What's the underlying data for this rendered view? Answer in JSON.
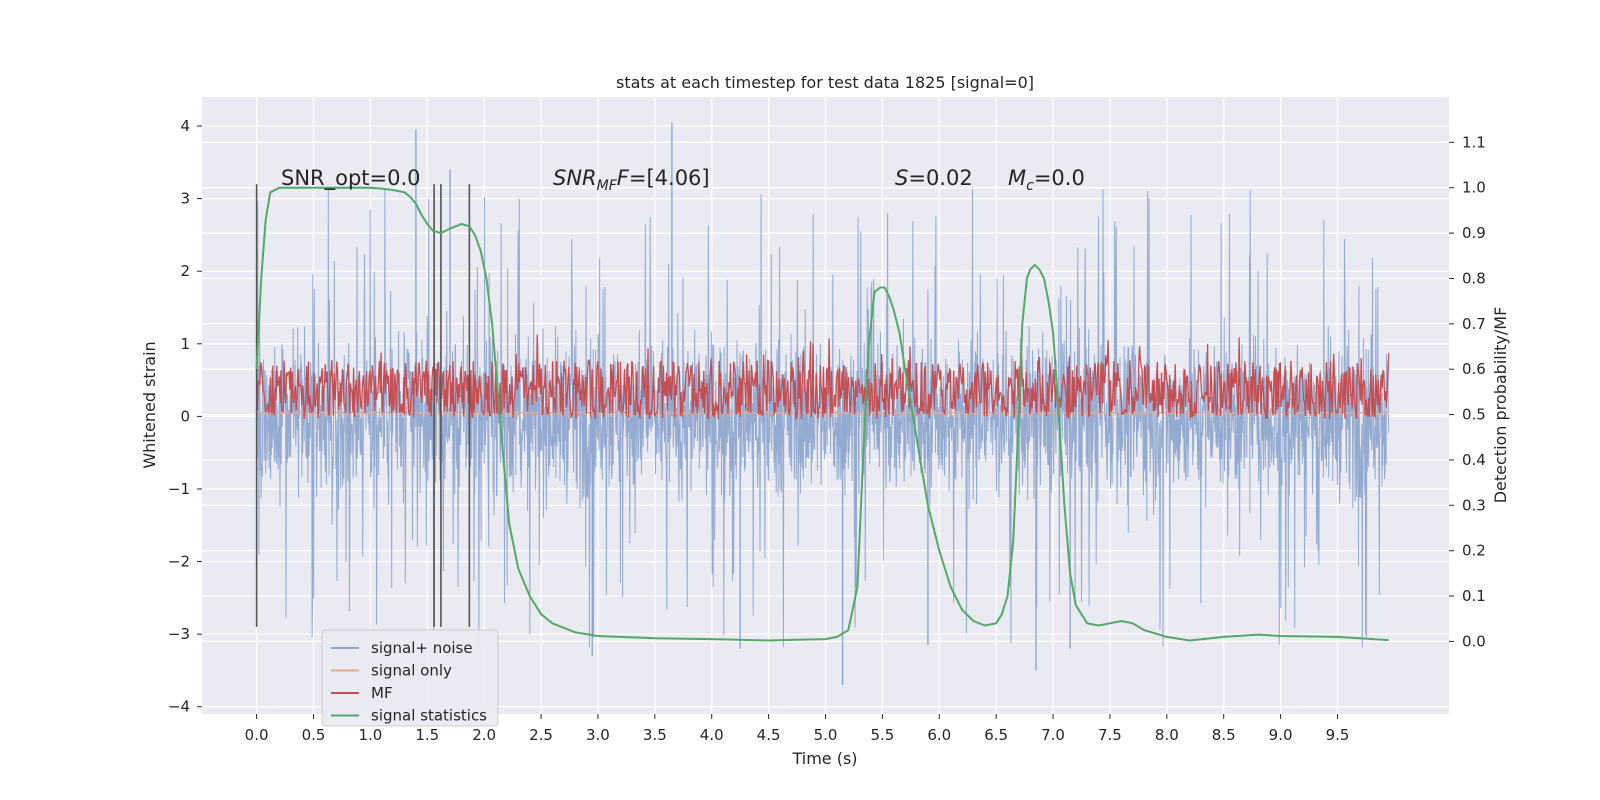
{
  "chart_data": {
    "type": "line",
    "title": "stats at each timestep for test data 1825 [signal=0]",
    "xlabel": "Time (s)",
    "ylabel": "Whitened strain",
    "y2label": "Detection probability/MF",
    "xlim": [
      -0.48,
      10.48
    ],
    "ylim": [
      -4.1,
      4.4
    ],
    "y2lim": [
      -0.16,
      1.2
    ],
    "x_ticks": [
      0.0,
      0.5,
      1.0,
      1.5,
      2.0,
      2.5,
      3.0,
      3.5,
      4.0,
      4.5,
      5.0,
      5.5,
      6.0,
      6.5,
      7.0,
      7.5,
      8.0,
      8.5,
      9.0,
      9.5
    ],
    "x_tick_labels": [
      "0.0",
      "0.5",
      "1.0",
      "1.5",
      "2.0",
      "2.5",
      "3.0",
      "3.5",
      "4.0",
      "4.5",
      "5.0",
      "5.5",
      "6.0",
      "6.5",
      "7.0",
      "7.5",
      "8.0",
      "8.5",
      "9.0",
      "9.5"
    ],
    "y_ticks": [
      -4,
      -3,
      -2,
      -1,
      0,
      1,
      2,
      3,
      4
    ],
    "y_tick_labels": [
      "−4",
      "−3",
      "−2",
      "−1",
      "0",
      "1",
      "2",
      "3",
      "4"
    ],
    "y2_ticks": [
      0.0,
      0.1,
      0.2,
      0.3,
      0.4,
      0.5,
      0.6,
      0.7,
      0.8,
      0.9,
      1.0,
      1.1
    ],
    "y2_tick_labels": [
      "0.0",
      "0.1",
      "0.2",
      "0.3",
      "0.4",
      "0.5",
      "0.6",
      "0.7",
      "0.8",
      "0.9",
      "1.0",
      "1.1"
    ],
    "grid": true,
    "legend_position": "lower-left",
    "annotations": {
      "snr_opt": "SNR_opt=0.0",
      "snr_mf_main": "SNR",
      "snr_mf_sub": "MF",
      "snr_mf_value": "=[4.06]",
      "s_main": "S",
      "s_value": "=0.02",
      "mc_main": "M",
      "mc_sub": "c",
      "mc_value": "=0.0"
    },
    "vertical_markers_x": [
      0.0,
      1.56,
      1.62,
      1.87
    ],
    "vertical_markers_range": [
      -2.9,
      3.2
    ],
    "series": [
      {
        "name": "signal+ noise",
        "color": "#8fa6cf",
        "noise_envelope": {
          "x_start": 0.0,
          "x_end": 9.95,
          "dense_min": -1.4,
          "dense_max": 1.4,
          "peak_min": -3.7,
          "peak_max": 4.05
        },
        "notable_peaks": [
          [
            1.4,
            3.95
          ],
          [
            3.65,
            4.05
          ],
          [
            1.7,
            3.4
          ],
          [
            5.15,
            -3.7
          ],
          [
            2.95,
            -3.3
          ],
          [
            6.85,
            -3.5
          ],
          [
            7.15,
            -3.2
          ],
          [
            5.9,
            -3.15
          ],
          [
            4.25,
            -3.2
          ]
        ]
      },
      {
        "name": "signal only",
        "color": "#e8a791",
        "x": [
          0.0,
          9.95
        ],
        "y": [
          0.05,
          0.05
        ]
      },
      {
        "name": "MF",
        "color": "#c44e52",
        "axis": "right",
        "band": {
          "base": 0.5,
          "low": 0.49,
          "high": 0.62,
          "peak": 0.68
        }
      },
      {
        "name": "signal statistics",
        "color": "#55a868",
        "axis": "right",
        "x": [
          0.0,
          0.04,
          0.08,
          0.12,
          0.2,
          0.3,
          0.5,
          0.8,
          1.0,
          1.1,
          1.2,
          1.3,
          1.35,
          1.4,
          1.45,
          1.5,
          1.55,
          1.62,
          1.7,
          1.75,
          1.8,
          1.87,
          1.92,
          1.97,
          2.02,
          2.07,
          2.12,
          2.17,
          2.22,
          2.3,
          2.4,
          2.5,
          2.6,
          2.8,
          3.0,
          3.5,
          4.0,
          4.5,
          4.8,
          5.0,
          5.1,
          5.2,
          5.28,
          5.33,
          5.38,
          5.43,
          5.48,
          5.52,
          5.56,
          5.6,
          5.65,
          5.7,
          5.8,
          5.9,
          6.0,
          6.1,
          6.2,
          6.3,
          6.4,
          6.5,
          6.55,
          6.6,
          6.65,
          6.7,
          6.73,
          6.77,
          6.8,
          6.84,
          6.88,
          6.92,
          6.96,
          7.0,
          7.05,
          7.1,
          7.15,
          7.2,
          7.3,
          7.4,
          7.5,
          7.6,
          7.7,
          7.8,
          8.0,
          8.2,
          8.5,
          8.8,
          9.0,
          9.5,
          9.95
        ],
        "y": [
          0.6,
          0.8,
          0.93,
          0.99,
          1.0,
          1.0,
          1.0,
          1.0,
          1.0,
          0.998,
          0.995,
          0.99,
          0.98,
          0.965,
          0.94,
          0.92,
          0.905,
          0.9,
          0.91,
          0.915,
          0.92,
          0.915,
          0.895,
          0.86,
          0.8,
          0.7,
          0.55,
          0.4,
          0.26,
          0.16,
          0.1,
          0.06,
          0.04,
          0.02,
          0.012,
          0.007,
          0.005,
          0.002,
          0.004,
          0.005,
          0.01,
          0.025,
          0.12,
          0.4,
          0.65,
          0.77,
          0.78,
          0.78,
          0.76,
          0.73,
          0.68,
          0.6,
          0.45,
          0.3,
          0.2,
          0.12,
          0.07,
          0.045,
          0.035,
          0.04,
          0.06,
          0.1,
          0.22,
          0.5,
          0.7,
          0.8,
          0.82,
          0.83,
          0.82,
          0.8,
          0.75,
          0.68,
          0.5,
          0.3,
          0.15,
          0.08,
          0.04,
          0.035,
          0.04,
          0.045,
          0.04,
          0.025,
          0.01,
          0.002,
          0.01,
          0.015,
          0.012,
          0.01,
          0.003
        ]
      }
    ]
  }
}
